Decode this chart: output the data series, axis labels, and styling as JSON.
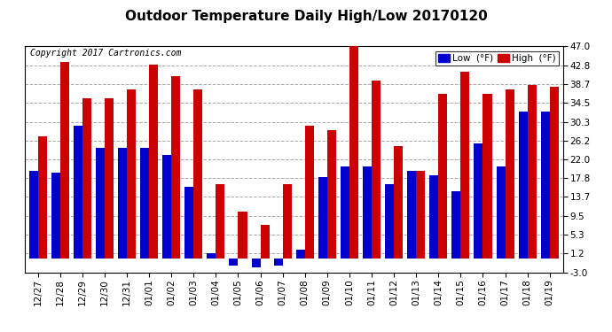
{
  "title": "Outdoor Temperature Daily High/Low 20170120",
  "copyright": "Copyright 2017 Cartronics.com",
  "legend_low": "Low  (°F)",
  "legend_high": "High  (°F)",
  "dates": [
    "12/27",
    "12/28",
    "12/29",
    "12/30",
    "12/31",
    "01/01",
    "01/02",
    "01/03",
    "01/04",
    "01/05",
    "01/06",
    "01/07",
    "01/08",
    "01/09",
    "01/10",
    "01/11",
    "01/12",
    "01/13",
    "01/14",
    "01/15",
    "01/16",
    "01/17",
    "01/18",
    "01/19"
  ],
  "highs": [
    27.0,
    43.5,
    35.5,
    35.5,
    37.5,
    43.0,
    40.5,
    37.5,
    16.5,
    10.5,
    7.5,
    16.5,
    29.5,
    28.5,
    47.0,
    39.5,
    25.0,
    19.5,
    36.5,
    41.5,
    36.5,
    37.5,
    38.5,
    38.0
  ],
  "lows": [
    19.5,
    19.0,
    29.5,
    24.5,
    24.5,
    24.5,
    23.0,
    16.0,
    1.2,
    -1.5,
    -2.0,
    -1.5,
    2.0,
    18.0,
    20.5,
    20.5,
    16.5,
    19.5,
    18.5,
    15.0,
    25.5,
    20.5,
    32.5,
    32.5
  ],
  "bar_color_high": "#cc0000",
  "bar_color_low": "#0000cc",
  "background_color": "#ffffff",
  "plot_bg_color": "#ffffff",
  "grid_color": "#aaaaaa",
  "ylim": [
    -3.0,
    47.0
  ],
  "yticks": [
    -3.0,
    1.2,
    5.3,
    9.5,
    13.7,
    17.8,
    22.0,
    26.2,
    30.3,
    34.5,
    38.7,
    42.8,
    47.0
  ],
  "title_fontsize": 11,
  "copyright_fontsize": 7,
  "tick_fontsize": 7.5,
  "bar_width": 0.4
}
